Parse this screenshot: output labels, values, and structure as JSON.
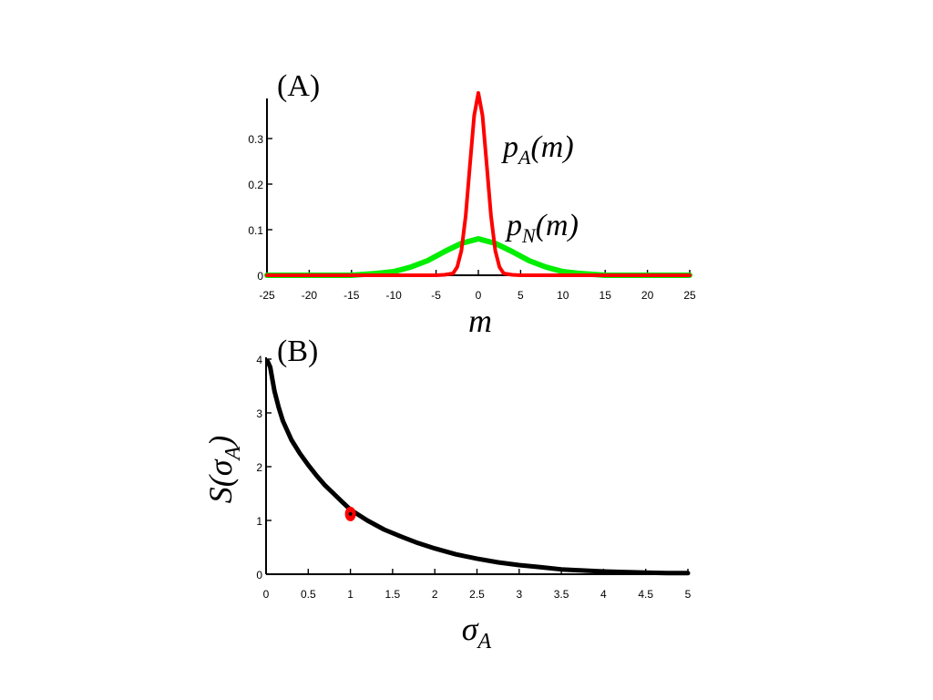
{
  "chart_data": [
    {
      "panel": "(A)",
      "type": "line",
      "xlabel": "m",
      "xlim": [
        -25,
        25
      ],
      "ylim": [
        0,
        0.4
      ],
      "xticks": [
        "-25",
        "-20",
        "-15",
        "-10",
        "-5",
        "0",
        "5",
        "10",
        "15",
        "20",
        "25"
      ],
      "yticks": [
        "0",
        "0.1",
        "0.2",
        "0.3"
      ],
      "series": [
        {
          "name": "pA(m)",
          "label_main": "p",
          "label_sub": "A",
          "label_rest": "(m)",
          "color": "#ff0000",
          "x": [
            -25,
            -5,
            -4,
            -3,
            -2.5,
            -2,
            -1.5,
            -1,
            -0.5,
            0,
            0.5,
            1,
            1.5,
            2,
            2.5,
            3,
            4,
            5,
            25
          ],
          "y": [
            0,
            0,
            0.001,
            0.004,
            0.018,
            0.054,
            0.13,
            0.24,
            0.35,
            0.4,
            0.35,
            0.24,
            0.13,
            0.054,
            0.018,
            0.004,
            0.001,
            0,
            0
          ]
        },
        {
          "name": "pN(m)",
          "label_main": "p",
          "label_sub": "N",
          "label_rest": "(m)",
          "color": "#00ee00",
          "x": [
            -25,
            -15,
            -12,
            -10,
            -8,
            -6,
            -4,
            -2,
            0,
            2,
            4,
            6,
            8,
            10,
            12,
            15,
            25
          ],
          "y": [
            0,
            0,
            0.004,
            0.008,
            0.018,
            0.032,
            0.052,
            0.07,
            0.08,
            0.07,
            0.052,
            0.032,
            0.018,
            0.008,
            0.004,
            0,
            0
          ]
        }
      ]
    },
    {
      "panel": "(B)",
      "type": "line",
      "xlabel_main": "σ",
      "xlabel_sub": "A",
      "ylabel_main": "S(σ",
      "ylabel_sub": "A",
      "ylabel_rest": ")",
      "xlim": [
        0,
        5
      ],
      "ylim": [
        0,
        4
      ],
      "xticks": [
        "0",
        "0.5",
        "1",
        "1.5",
        "2",
        "2.5",
        "3",
        "3.5",
        "4",
        "4.5",
        "5"
      ],
      "yticks": [
        "0",
        "1",
        "2",
        "3",
        "4"
      ],
      "series": [
        {
          "color": "#000000",
          "x": [
            0.02,
            0.05,
            0.1,
            0.15,
            0.2,
            0.3,
            0.4,
            0.5,
            0.6,
            0.7,
            0.8,
            0.9,
            1.0,
            1.2,
            1.4,
            1.6,
            1.8,
            2.0,
            2.25,
            2.5,
            2.75,
            3.0,
            3.25,
            3.5,
            3.75,
            4.0,
            4.25,
            4.5,
            4.75,
            5.0
          ],
          "y": [
            3.95,
            3.85,
            3.4,
            3.1,
            2.85,
            2.5,
            2.25,
            2.03,
            1.83,
            1.65,
            1.5,
            1.35,
            1.2,
            1.0,
            0.83,
            0.7,
            0.58,
            0.48,
            0.37,
            0.29,
            0.22,
            0.17,
            0.13,
            0.09,
            0.07,
            0.05,
            0.04,
            0.03,
            0.02,
            0.02
          ]
        }
      ],
      "marker": {
        "x": 1.0,
        "y": 1.12,
        "color": "#ff0000"
      }
    }
  ]
}
